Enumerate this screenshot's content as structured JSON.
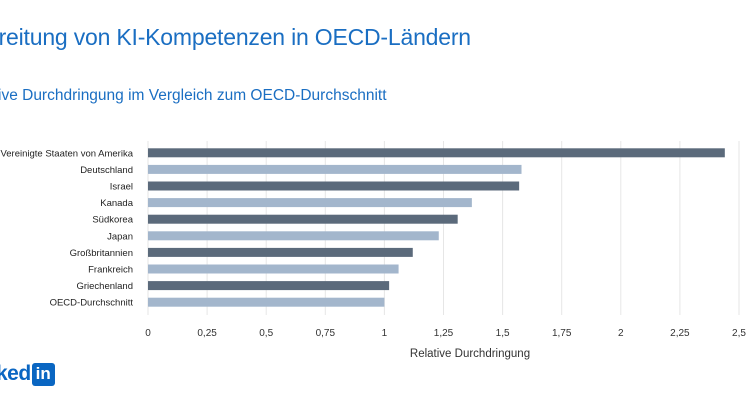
{
  "header": {
    "title": "oreitung von KI-Kompetenzen in OECD-Ländern",
    "subtitle": "ive Durchdringung im Vergleich zum OECD-Durchschnitt"
  },
  "logo": {
    "text": "ked",
    "box": "in"
  },
  "colors": {
    "title": "#1a6ec2",
    "dark_bar": "#5b6a7b",
    "light_bar": "#a3b6cc",
    "logo": "#0a66c2"
  },
  "chart_data": {
    "type": "bar",
    "orientation": "horizontal",
    "categories": [
      "Vereinigte Staaten von Amerika",
      "Deutschland",
      "Israel",
      "Kanada",
      "Südkorea",
      "Japan",
      "Großbritannien",
      "Frankreich",
      "Griechenland",
      "OECD-Durchschnitt"
    ],
    "values": [
      2.44,
      1.58,
      1.57,
      1.37,
      1.31,
      1.23,
      1.12,
      1.06,
      1.02,
      1.0
    ],
    "bar_colors": [
      "dark",
      "light",
      "dark",
      "light",
      "dark",
      "light",
      "dark",
      "light",
      "dark",
      "light"
    ],
    "xlabel": "Relative Durchdringung",
    "ylabel": "",
    "xlim": [
      0,
      2.5
    ],
    "x_ticks": [
      0,
      0.25,
      0.5,
      0.75,
      1,
      1.25,
      1.5,
      1.75,
      2,
      2.25,
      2.5
    ],
    "x_tick_labels": [
      "0",
      "0,25",
      "0,5",
      "0,75",
      "1",
      "1,25",
      "1,5",
      "1,75",
      "2",
      "2,25",
      "2,5"
    ],
    "grid": "vertical"
  }
}
